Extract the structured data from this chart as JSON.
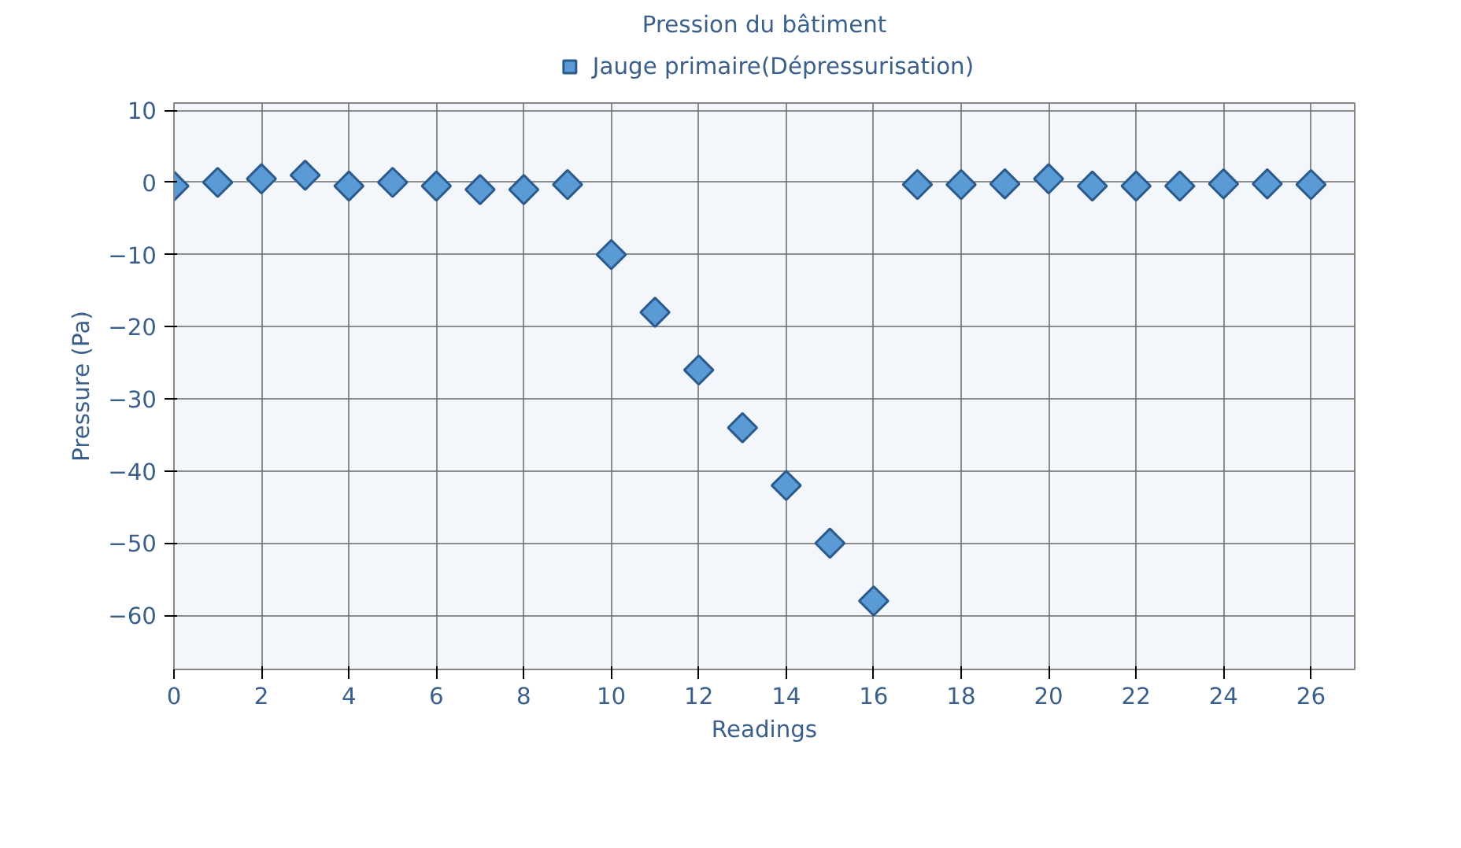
{
  "chart_data": {
    "type": "scatter",
    "title": "Pression du bâtiment",
    "xlabel": "Readings",
    "ylabel": "Pressure (Pa)",
    "x": [
      0,
      1,
      2,
      3,
      4,
      5,
      6,
      7,
      8,
      9,
      10,
      11,
      12,
      13,
      14,
      15,
      16,
      17,
      18,
      19,
      20,
      21,
      22,
      23,
      24,
      25,
      26
    ],
    "series": [
      {
        "name": "Jauge primaire(Dépressurisation)",
        "color": "#5b9bd5",
        "values": [
          -0.5,
          0,
          0.5,
          1,
          -0.5,
          0,
          -0.5,
          -1,
          -1,
          -0.3,
          -10,
          -18,
          -26,
          -34,
          -42,
          -50,
          -58,
          -0.3,
          -0.3,
          -0.2,
          0.5,
          -0.5,
          -0.5,
          -0.5,
          -0.2,
          -0.2,
          -0.3
        ]
      }
    ],
    "xlim": [
      0,
      27
    ],
    "ylim": [
      -67.5,
      11
    ],
    "xticks": [
      0,
      2,
      4,
      6,
      8,
      10,
      12,
      14,
      16,
      18,
      20,
      22,
      24,
      26
    ],
    "yticks": [
      -60,
      -50,
      -40,
      -30,
      -20,
      -10,
      0,
      10
    ],
    "grid": true,
    "legend": "top",
    "marker": "diamond"
  }
}
